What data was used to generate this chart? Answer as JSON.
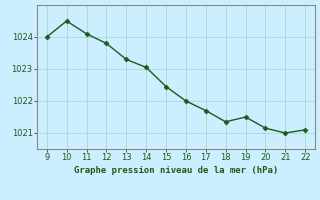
{
  "x": [
    9,
    10,
    11,
    12,
    13,
    14,
    15,
    16,
    17,
    18,
    19,
    20,
    21,
    22
  ],
  "y": [
    1024.0,
    1024.5,
    1024.1,
    1023.8,
    1023.3,
    1023.05,
    1022.45,
    1022.0,
    1021.7,
    1021.35,
    1021.5,
    1021.15,
    1021.0,
    1021.1
  ],
  "xlim": [
    8.5,
    22.5
  ],
  "ylim": [
    1020.5,
    1025.0
  ],
  "yticks": [
    1021,
    1022,
    1023,
    1024
  ],
  "xticks": [
    9,
    10,
    11,
    12,
    13,
    14,
    15,
    16,
    17,
    18,
    19,
    20,
    21,
    22
  ],
  "line_color": "#1a5c1a",
  "marker": "D",
  "marker_size": 2.5,
  "line_width": 1.0,
  "background_color": "#cceeff",
  "grid_color": "#aadddd",
  "spine_color": "#888888",
  "xlabel": "Graphe pression niveau de la mer (hPa)",
  "xlabel_color": "#1a5c1a",
  "xlabel_fontsize": 6.5,
  "tick_color": "#1a5c1a",
  "tick_fontsize": 6.0,
  "ytick_fontsize": 6.0
}
